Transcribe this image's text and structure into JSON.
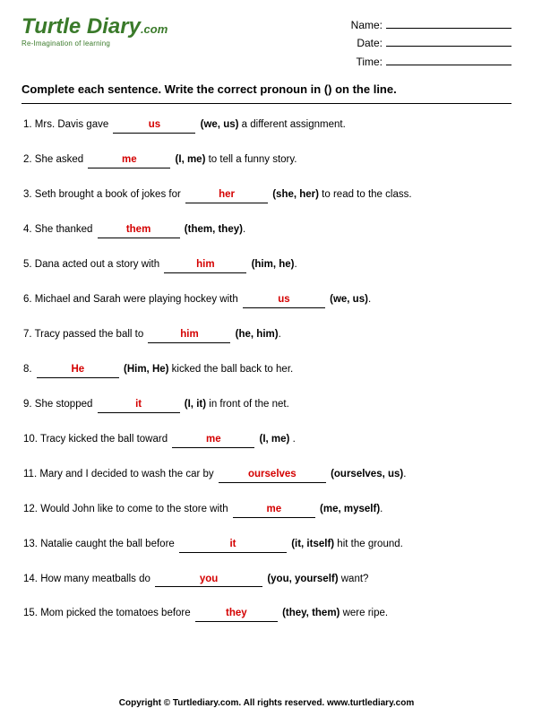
{
  "logo": {
    "brand_html": "Turtle Diary",
    "dotcom": ".com",
    "tagline": "Re-Imagination of learning",
    "brand_color": "#3a7a2a"
  },
  "meta": {
    "name_label": "Name:",
    "date_label": "Date:",
    "time_label": "Time:"
  },
  "instructions": "Complete each sentence. Write the correct pronoun in () on the line.",
  "answer_color": "#d40000",
  "questions": [
    {
      "n": "1.",
      "pre": "Mrs. Davis gave ",
      "ans": "us",
      "choices": "(we, us)",
      "post": " a different assignment."
    },
    {
      "n": "2.",
      "pre": "She asked ",
      "ans": "me",
      "choices": "(I, me)",
      "post": " to tell a funny story."
    },
    {
      "n": "3.",
      "pre": "Seth brought a book of jokes for ",
      "ans": "her",
      "choices": "(she, her)",
      "post": " to read to the class."
    },
    {
      "n": "4.",
      "pre": "She thanked ",
      "ans": "them",
      "choices": "(them, they)",
      "post": "."
    },
    {
      "n": "5.",
      "pre": "Dana acted out a story with ",
      "ans": "him",
      "choices": "(him, he)",
      "post": "."
    },
    {
      "n": "6.",
      "pre": "Michael and Sarah were playing hockey with ",
      "ans": "us",
      "choices": "(we, us)",
      "post": "."
    },
    {
      "n": "7.",
      "pre": "Tracy passed the ball to ",
      "ans": "him",
      "choices": "(he, him)",
      "post": "."
    },
    {
      "n": "8.",
      "pre": "",
      "ans": "He",
      "choices": "(Him, He)",
      "post": " kicked the ball back to her."
    },
    {
      "n": "9.",
      "pre": "She stopped ",
      "ans": "it",
      "choices": "(I, it)",
      "post": " in front of the net."
    },
    {
      "n": "10.",
      "pre": "Tracy kicked the ball toward ",
      "ans": "me",
      "choices": "(I, me)",
      "post": " ."
    },
    {
      "n": "11.",
      "pre": "Mary and I decided to wash the car by ",
      "ans": "ourselves",
      "choices": "(ourselves, us)",
      "post": ".",
      "wide": true
    },
    {
      "n": "12.",
      "pre": "Would John like to come to the store with ",
      "ans": "me",
      "choices": "(me, myself)",
      "post": "."
    },
    {
      "n": "13.",
      "pre": "Natalie caught the ball before ",
      "ans": "it",
      "choices": "(it, itself)",
      "post": " hit the ground.",
      "wide": true
    },
    {
      "n": "14.",
      "pre": "How many meatballs do ",
      "ans": "you",
      "choices": "(you, yourself)",
      "post": " want?",
      "wide": true
    },
    {
      "n": "15.",
      "pre": "Mom picked the tomatoes before  ",
      "ans": "they",
      "choices": "(they, them)",
      "post": " were ripe."
    }
  ],
  "footer": "Copyright © Turtlediary.com. All rights reserved. www.turtlediary.com"
}
